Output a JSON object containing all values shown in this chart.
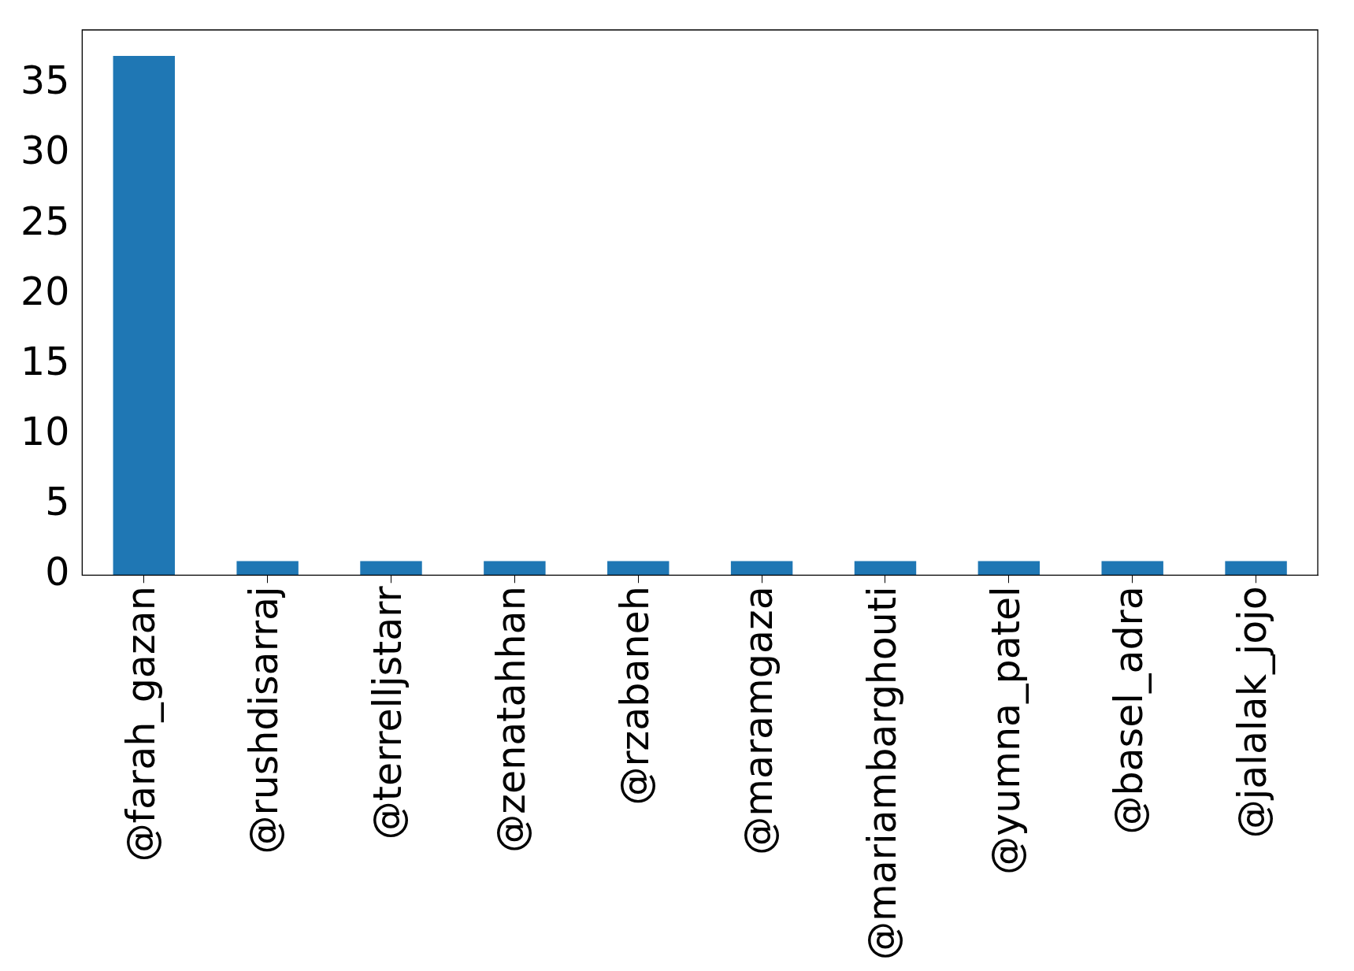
{
  "chart_data": {
    "type": "bar",
    "categories": [
      "@farah_gazan",
      "@rushdisarraj",
      "@terrelljstarr",
      "@zenatahhan",
      "@rzabaneh",
      "@maramgaza",
      "@mariambarghouti",
      "@yumna_patel",
      "@basel_adra",
      "@jalalak_jojo"
    ],
    "values": [
      37,
      1,
      1,
      1,
      1,
      1,
      1,
      1,
      1,
      1
    ],
    "color": "#1f77b4",
    "ylim": [
      0,
      38.85
    ],
    "yticks": [
      0,
      5,
      10,
      15,
      20,
      25,
      30,
      35
    ],
    "grid": false,
    "legend": false
  }
}
